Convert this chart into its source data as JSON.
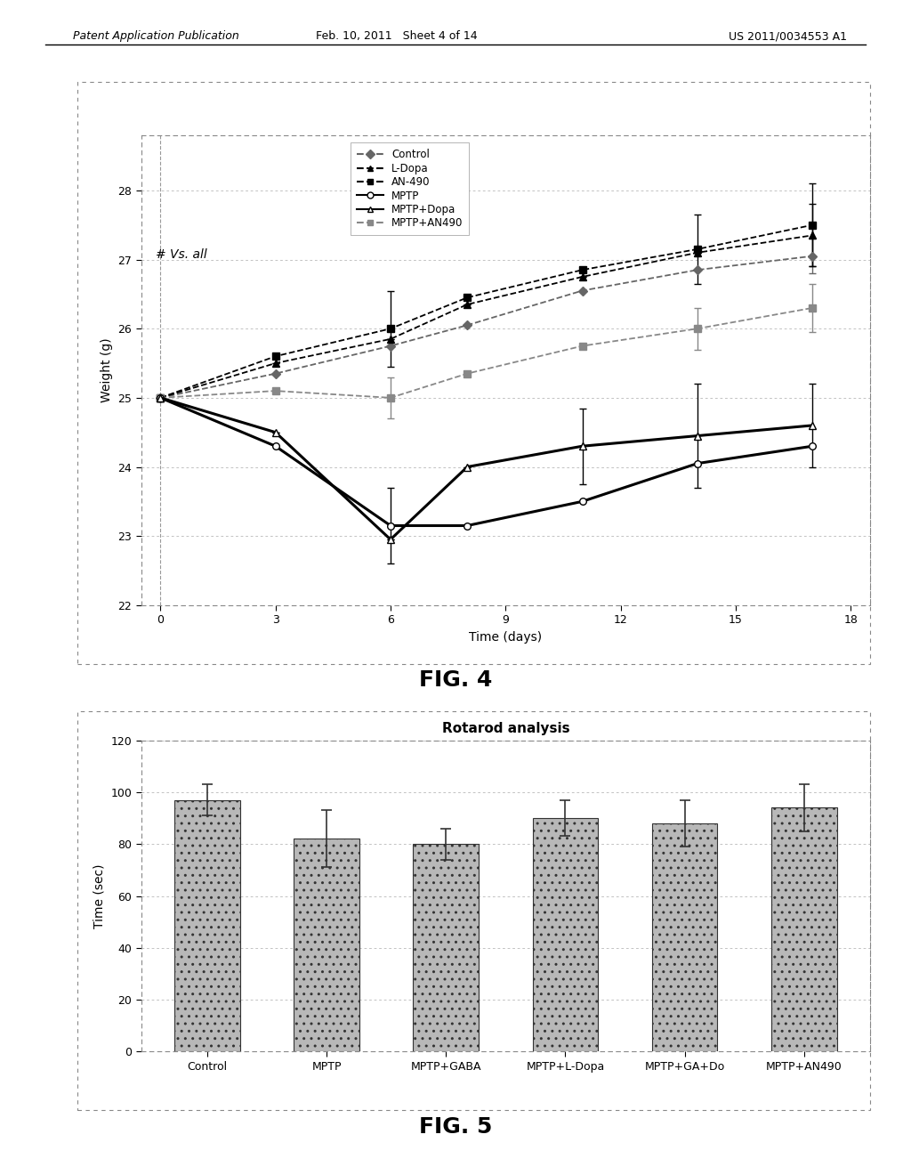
{
  "header_left": "Patent Application Publication",
  "header_center": "Feb. 10, 2011   Sheet 4 of 14",
  "header_right": "US 2011/0034553 A1",
  "fig4": {
    "xlabel": "Time (days)",
    "ylabel": "Weight (g)",
    "annotation": "# Vs. all",
    "xlim": [
      -0.5,
      18.5
    ],
    "ylim": [
      22,
      28.8
    ],
    "xticks": [
      0,
      3,
      6,
      9,
      12,
      15,
      18
    ],
    "yticks": [
      22,
      23,
      24,
      25,
      26,
      27,
      28
    ],
    "series": {
      "Control": {
        "x": [
          0,
          3,
          6,
          8,
          11,
          14,
          17
        ],
        "y": [
          25.0,
          25.35,
          25.75,
          26.05,
          26.55,
          26.85,
          27.05
        ],
        "yerr": [
          0.0,
          0.0,
          0.0,
          0.0,
          0.0,
          0.0,
          0.25
        ],
        "color": "#666666",
        "linestyle": "--",
        "marker": "D",
        "markersize": 6,
        "linewidth": 1.3,
        "filled": true
      },
      "L-Dopa": {
        "x": [
          0,
          3,
          6,
          8,
          11,
          14,
          17
        ],
        "y": [
          25.0,
          25.5,
          25.85,
          26.35,
          26.75,
          27.1,
          27.35
        ],
        "yerr": [
          0.0,
          0.0,
          0.0,
          0.0,
          0.0,
          0.0,
          0.45
        ],
        "color": "#000000",
        "linestyle": "--",
        "marker": "^",
        "markersize": 6,
        "linewidth": 1.3,
        "filled": true
      },
      "AN-490": {
        "x": [
          0,
          3,
          6,
          8,
          11,
          14,
          17
        ],
        "y": [
          25.0,
          25.6,
          26.0,
          26.45,
          26.85,
          27.15,
          27.5
        ],
        "yerr": [
          0.0,
          0.0,
          0.55,
          0.0,
          0.0,
          0.5,
          0.6
        ],
        "color": "#000000",
        "linestyle": "--",
        "marker": "s",
        "markersize": 6,
        "linewidth": 1.3,
        "filled": true
      },
      "MPTP": {
        "x": [
          0,
          3,
          6,
          8,
          11,
          14,
          17
        ],
        "y": [
          25.0,
          24.3,
          23.15,
          23.15,
          23.5,
          24.05,
          24.3
        ],
        "yerr": [
          0.0,
          0.0,
          0.55,
          0.0,
          0.0,
          0.0,
          0.0
        ],
        "color": "#000000",
        "linestyle": "-",
        "marker": "o",
        "markersize": 6,
        "linewidth": 2.2,
        "filled": false
      },
      "MPTP+Dopa": {
        "x": [
          0,
          3,
          6,
          8,
          11,
          14,
          17
        ],
        "y": [
          25.0,
          24.5,
          22.95,
          24.0,
          24.3,
          24.45,
          24.6
        ],
        "yerr": [
          0.0,
          0.0,
          0.0,
          0.0,
          0.55,
          0.75,
          0.6
        ],
        "color": "#000000",
        "linestyle": "-",
        "marker": "^",
        "markersize": 6,
        "linewidth": 2.2,
        "filled": false
      },
      "MPTP+AN490": {
        "x": [
          0,
          3,
          6,
          8,
          11,
          14,
          17
        ],
        "y": [
          25.0,
          25.1,
          25.0,
          25.35,
          25.75,
          26.0,
          26.3
        ],
        "yerr": [
          0.0,
          0.0,
          0.3,
          0.0,
          0.0,
          0.3,
          0.35
        ],
        "color": "#888888",
        "linestyle": "--",
        "marker": "s",
        "markersize": 6,
        "linewidth": 1.3,
        "filled": true
      }
    },
    "legend_order": [
      "Control",
      "L-Dopa",
      "AN-490",
      "MPTP",
      "MPTP+Dopa",
      "MPTP+AN490"
    ],
    "fig_label": "FIG. 4"
  },
  "fig5": {
    "title": "Rotarod analysis",
    "ylabel": "Time (sec)",
    "ylim": [
      0,
      120
    ],
    "yticks": [
      0,
      20,
      40,
      60,
      80,
      100,
      120
    ],
    "categories": [
      "Control",
      "MPTP",
      "MPTP+GABA",
      "MPTP+L-Dopa",
      "MPTP+GA+Do",
      "MPTP+AN490"
    ],
    "values": [
      97,
      82,
      80,
      90,
      88,
      94
    ],
    "errors": [
      6,
      11,
      6,
      7,
      9,
      9
    ],
    "bar_color": "#b8b8b8",
    "fig_label": "FIG. 5"
  }
}
